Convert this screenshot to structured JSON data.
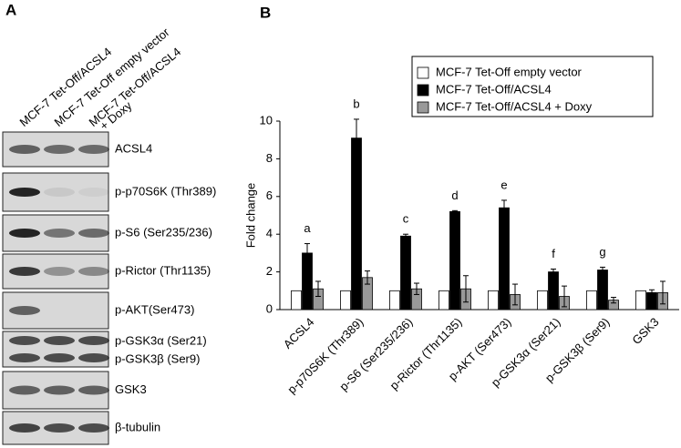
{
  "panel_a": {
    "label": "A",
    "lanes": [
      [
        "MCF-7 Tet-Off/ACSL4"
      ],
      [
        "MCF-7 Tet-Off empty vector"
      ],
      [
        "MCF-7 Tet-Off/ACSL4",
        "+ Doxy"
      ]
    ],
    "blots": [
      {
        "labels": [
          "ACSL4"
        ]
      },
      {
        "labels": [
          "p-p70S6K (Thr389)"
        ]
      },
      {
        "labels": [
          "p-S6 (Ser235/236)"
        ]
      },
      {
        "labels": [
          "p-Rictor (Thr1135)"
        ]
      },
      {
        "labels": [
          "p-AKT(Ser473)"
        ]
      },
      {
        "labels": [
          "p-GSK3α (Ser21)",
          "p-GSK3β (Ser9)"
        ]
      },
      {
        "labels": [
          "GSK3"
        ]
      },
      {
        "labels": [
          "β-tubulin"
        ]
      }
    ]
  },
  "chart_data": {
    "type": "bar",
    "panel_label": "B",
    "ylabel": "Fold change",
    "categories": [
      "ACSL4",
      "p-p70S6K (Thr389)",
      "p-S6 (Ser235/236)",
      "p-Rictor (Thr1135)",
      "p-AKT (Ser473)",
      "p-GSK3α (Ser21)",
      "p-GSK3β (Ser9)",
      "GSK3"
    ],
    "series": [
      {
        "name": "MCF-7 Tet-Off empty vector",
        "color": "#ffffff",
        "values": [
          1,
          1,
          1,
          1,
          1,
          1,
          1,
          1
        ]
      },
      {
        "name": "MCF-7 Tet-Off/ACSL4",
        "color": "#000000",
        "values": [
          3.0,
          9.1,
          3.9,
          5.2,
          5.4,
          2.0,
          2.1,
          0.9
        ],
        "errors": [
          0.5,
          1.0,
          0.1,
          0.05,
          0.4,
          0.15,
          0.15,
          0.15
        ]
      },
      {
        "name": "MCF-7 Tet-Off/ACSL4 + Doxy",
        "color": "#999999",
        "values": [
          1.1,
          1.7,
          1.1,
          1.1,
          0.8,
          0.7,
          0.5,
          0.9
        ],
        "errors": [
          0.4,
          0.35,
          0.3,
          0.7,
          0.55,
          0.55,
          0.15,
          0.6
        ]
      }
    ],
    "annotations": [
      "a",
      "b",
      "c",
      "d",
      "e",
      "f",
      "g",
      null
    ],
    "ylim": [
      0,
      10
    ],
    "yticks": [
      0,
      2,
      4,
      6,
      8,
      10
    ]
  }
}
